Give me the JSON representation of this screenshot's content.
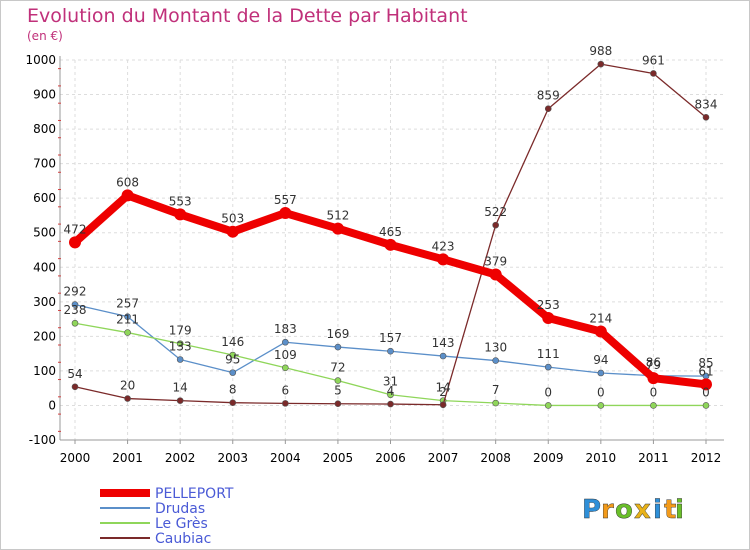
{
  "chart_data": {
    "type": "line",
    "title": "Evolution du Montant de la Dette par Habitant",
    "subtitle": "(en €)",
    "x": [
      "2000",
      "2001",
      "2002",
      "2003",
      "2004",
      "2005",
      "2006",
      "2007",
      "2008",
      "2009",
      "2010",
      "2011",
      "2012"
    ],
    "ylim": [
      -100,
      1000
    ],
    "yticks": [
      -100,
      0,
      100,
      200,
      300,
      400,
      500,
      600,
      700,
      800,
      900,
      1000
    ],
    "grid": true,
    "legend_position": "bottom-left",
    "series": [
      {
        "name": "PELLEPORT",
        "color": "#ee0000",
        "values": [
          472,
          608,
          553,
          503,
          557,
          512,
          465,
          423,
          379,
          253,
          214,
          79,
          61
        ]
      },
      {
        "name": "Drudas",
        "color": "#5b8fc9",
        "values": [
          292,
          257,
          133,
          95,
          183,
          169,
          157,
          143,
          130,
          111,
          94,
          86,
          85
        ]
      },
      {
        "name": "Le Grès",
        "color": "#8fd65a",
        "values": [
          238,
          211,
          179,
          146,
          109,
          72,
          31,
          14,
          7,
          0,
          0,
          0,
          0
        ]
      },
      {
        "name": "Caubiac",
        "color": "#7b2a2a",
        "values": [
          54,
          20,
          14,
          8,
          6,
          5,
          4,
          2,
          522,
          859,
          988,
          961,
          834
        ]
      }
    ]
  },
  "brand": {
    "letters": [
      "P",
      "r",
      "o",
      "x",
      "i",
      "t",
      "i"
    ],
    "colors": [
      "#2e8fd8",
      "#f29a1a",
      "#6abf2a",
      "#e8b21a",
      "#2e8fd8",
      "#f29a1a",
      "#6abf2a"
    ]
  }
}
